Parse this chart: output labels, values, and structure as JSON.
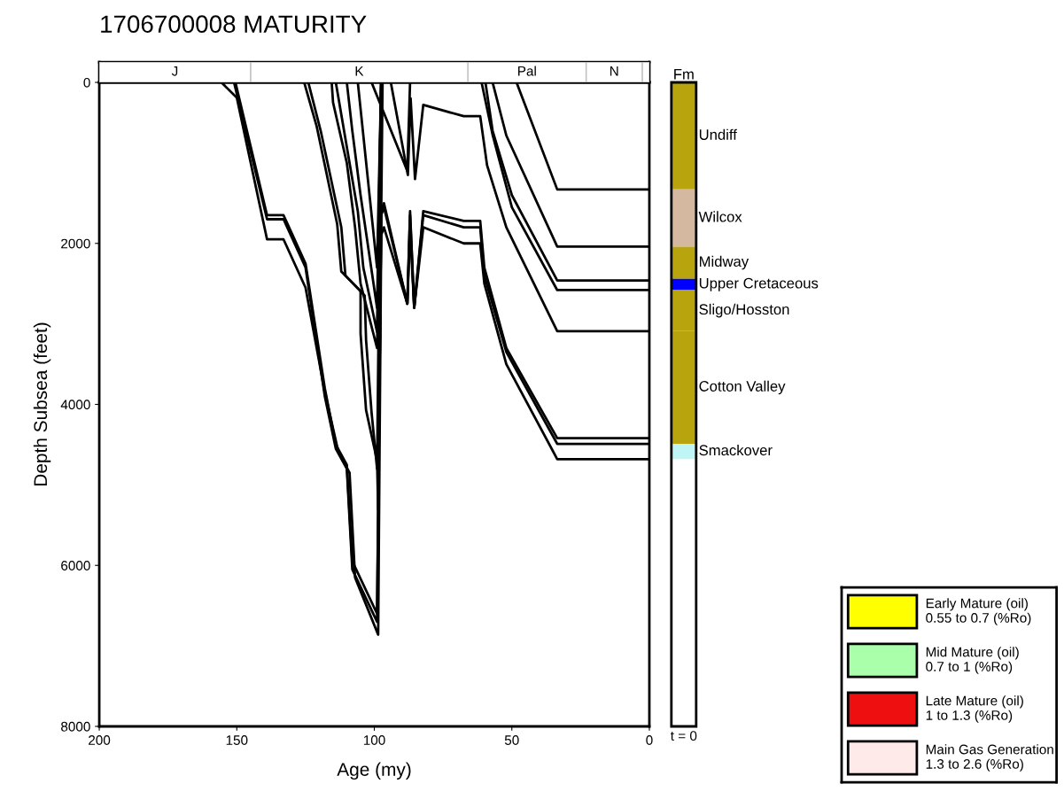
{
  "chart_data": [
    {
      "type": "line",
      "xlabel": "Age (my)",
      "ylabel": "Depth Subsea (feet)",
      "xlim": [
        200,
        0
      ],
      "ylim": [
        8000,
        0
      ],
      "xticks": [
        200,
        150,
        100,
        50,
        0
      ],
      "yticks": [
        0,
        2000,
        4000,
        6000,
        8000
      ],
      "grid": false,
      "marker": "none",
      "line_style": "solid",
      "series": [
        {
          "color": "#000000",
          "x": [
            48.3,
            33.5,
            0
          ],
          "values": [
            0,
            1330,
            1330
          ]
        },
        {
          "color": "#000000",
          "x": [
            57,
            52,
            33.5,
            0
          ],
          "values": [
            0,
            660,
            2040,
            2040
          ]
        },
        {
          "color": "#000000",
          "x": [
            59.6,
            57,
            50,
            33.5,
            0
          ],
          "values": [
            0,
            600,
            1400,
            2460,
            2460
          ]
        },
        {
          "color": "#000000",
          "x": [
            61,
            57,
            50,
            33.5,
            0
          ],
          "values": [
            0,
            650,
            1550,
            2580,
            2580
          ]
        },
        {
          "color": "#000000",
          "x": [
            94,
            87.8,
            86.8,
            85.2,
            82.2,
            67.5,
            61.5,
            59,
            52,
            33.5,
            0
          ],
          "values": [
            0,
            1150,
            200,
            1200,
            280,
            420,
            420,
            1030,
            1800,
            3090,
            3090
          ]
        },
        {
          "color": "#000000",
          "x": [
            150.5,
            139,
            133,
            125,
            118,
            114,
            110,
            108,
            99,
            97.5,
            96.5,
            88,
            87,
            85.5,
            82.2,
            67.5,
            61.5,
            60,
            52,
            33.5,
            0
          ],
          "values": [
            0,
            1650,
            1650,
            2250,
            3800,
            4500,
            4750,
            5950,
            6600,
            1600,
            1500,
            2750,
            1600,
            2800,
            1600,
            1720,
            1720,
            2300,
            3300,
            4420,
            4420
          ]
        },
        {
          "color": "#000000",
          "x": [
            151,
            139,
            133,
            125,
            118,
            114,
            110,
            108,
            99,
            97.5,
            96.5,
            88,
            87,
            85.5,
            82.2,
            67.5,
            61.5,
            60,
            52,
            33.5,
            0
          ],
          "values": [
            0,
            1700,
            1700,
            2300,
            3900,
            4550,
            4800,
            6050,
            6700,
            1650,
            1550,
            2750,
            1650,
            2800,
            1650,
            1800,
            1800,
            2400,
            3350,
            4490,
            4490
          ]
        },
        {
          "color": "#000000",
          "x": [
            155.6,
            150,
            139,
            133,
            125,
            118,
            113,
            109,
            107,
            98.6,
            97.5,
            96.5,
            88,
            87,
            85.5,
            82.2,
            67.5,
            61.5,
            60,
            52,
            33.5,
            0
          ],
          "values": [
            0,
            190,
            1950,
            1950,
            2550,
            3850,
            4600,
            4850,
            6150,
            6860,
            1900,
            1800,
            2750,
            1800,
            2800,
            1800,
            2000,
            2000,
            2500,
            3500,
            4680,
            4680
          ]
        },
        {
          "color": "#000000",
          "x": [
            125.5,
            121,
            113.5,
            112,
            105,
            105,
            103,
            99,
            98.6,
            97
          ],
          "values": [
            0,
            540,
            1760,
            2350,
            2590,
            3120,
            4070,
            4700,
            5300,
            0
          ]
        },
        {
          "color": "#000000",
          "x": [
            124,
            119.5,
            112,
            110.5,
            103.5,
            103,
            101,
            99,
            97.5
          ],
          "values": [
            0,
            600,
            1800,
            2400,
            2650,
            3200,
            4100,
            4800,
            0
          ]
        },
        {
          "color": "#000000",
          "x": [
            115.5,
            115,
            110,
            107,
            105,
            99,
            97.5
          ],
          "values": [
            0,
            250,
            1000,
            1800,
            2500,
            3300,
            0
          ]
        },
        {
          "color": "#000000",
          "x": [
            114,
            110,
            106,
            104,
            99,
            97.5
          ],
          "values": [
            0,
            800,
            1600,
            2300,
            3100,
            0
          ]
        },
        {
          "color": "#000000",
          "x": [
            110,
            108,
            105,
            99,
            97.5
          ],
          "values": [
            0,
            600,
            1400,
            2800,
            0
          ]
        },
        {
          "color": "#000000",
          "x": [
            106,
            99,
            97.5
          ],
          "values": [
            0,
            2300,
            0
          ]
        },
        {
          "color": "#000000",
          "x": [
            101,
            88,
            87
          ],
          "values": [
            0,
            1100,
            0
          ]
        }
      ]
    },
    {
      "type": "bar",
      "title": "1706700008 MATURITY",
      "orientation": "horizontal",
      "stacked": true,
      "categories": [
        null
      ],
      "xlim": [
        200,
        0
      ],
      "tick_labels": false,
      "series": [
        {
          "color": "#ffffff",
          "values": [
            2.6
          ]
        },
        {
          "name": "N",
          "color": "#ffffff",
          "values": [
            20.4
          ]
        },
        {
          "name": "Pal",
          "color": "#ffffff",
          "values": [
            43
          ]
        },
        {
          "name": "K",
          "color": "#ffffff",
          "values": [
            79
          ]
        },
        {
          "name": "J",
          "color": "#ffffff",
          "values": [
            55
          ]
        }
      ]
    },
    {
      "type": "bar",
      "stacked": true,
      "title": "Fm",
      "categories": [
        "t = 0"
      ],
      "ylim": [
        8000,
        0
      ],
      "tick_labels": "x",
      "series": [
        {
          "name": "Undiff",
          "color": "#b8a40c",
          "values": [
            1330
          ]
        },
        {
          "name": "Wilcox",
          "color": "#d4b8a0",
          "values": [
            710
          ]
        },
        {
          "name": "Midway",
          "color": "#b8a40c",
          "values": [
            400
          ]
        },
        {
          "name": "Upper Cretaceous",
          "color": "#0000ff",
          "values": [
            140
          ]
        },
        {
          "name": "Sligo/Hosston",
          "color": "#b8a40c",
          "values": [
            510
          ]
        },
        {
          "name": "Cotton Valley",
          "color": "#b8a40c",
          "values": [
            1400
          ]
        },
        {
          "name": "Smackover",
          "color": "#bff5f5",
          "values": [
            190
          ]
        }
      ]
    },
    {
      "type": "other",
      "annotations": [
        "Early Mature (oil)\n0.55 to 0.7 (%Ro)",
        "Mid Mature (oil)\n0.7 to 1 (%Ro)",
        "Late Mature (oil)\n1 to 1.3 (%Ro)",
        "Main Gas Generation\n1.3 to 2.6 (%Ro)"
      ],
      "colors": [
        "#ffff00",
        "#aaffaa",
        "#ee1010",
        "#ffeaea"
      ]
    }
  ]
}
